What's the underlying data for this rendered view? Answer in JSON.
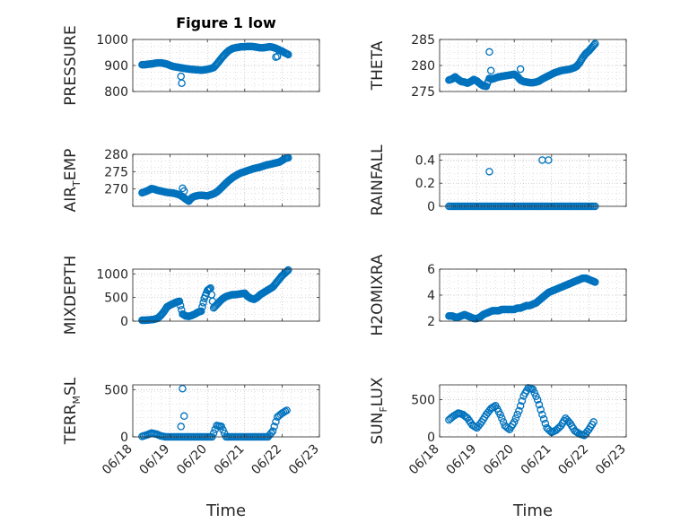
{
  "figure": {
    "title": "Figure 1 low",
    "x_label": "Time",
    "marker_color": "#0072BD",
    "axis_color": "#262626",
    "grid_color": "#B3B3B3"
  },
  "chart_data": [
    {
      "type": "scatter",
      "ylabel": "PRESSURE",
      "title": "Figure 1 low",
      "xlim": [
        "06/18",
        "06/23"
      ],
      "ylim": [
        800,
        1000
      ],
      "yticks": [
        800,
        900,
        1000
      ],
      "xticks": [
        "06/18",
        "06/19",
        "06/20",
        "06/21",
        "06/22",
        "06/23"
      ],
      "grid": true,
      "x": [
        "06/18 06h",
        "06/18 08h",
        "06/18 10h",
        "06/18 12h",
        "06/18 14h",
        "06/18 16h",
        "06/18 18h",
        "06/18 20h",
        "06/18 22h",
        "06/19 00h",
        "06/19 02h",
        "06/19 04h",
        "06/19 06h",
        "06/19 08h",
        "06/19 10h",
        "06/19 12h",
        "06/19 14h",
        "06/19 16h",
        "06/19 18h",
        "06/19 20h",
        "06/19 22h",
        "06/20 00h",
        "06/20 02h",
        "06/20 04h",
        "06/20 06h",
        "06/20 08h",
        "06/20 10h",
        "06/20 12h",
        "06/20 14h",
        "06/20 16h",
        "06/20 18h",
        "06/20 20h",
        "06/20 22h",
        "06/21 00h",
        "06/21 02h",
        "06/21 04h",
        "06/21 06h",
        "06/21 08h",
        "06/21 10h",
        "06/21 12h",
        "06/21 14h",
        "06/21 16h",
        "06/21 18h",
        "06/21 20h",
        "06/21 22h",
        "06/22 00h",
        "06/22 02h",
        "06/22 04h"
      ],
      "y": [
        903,
        903,
        905,
        906,
        908,
        910,
        910,
        908,
        905,
        900,
        896,
        894,
        892,
        890,
        888,
        886,
        885,
        884,
        883,
        882,
        883,
        885,
        888,
        892,
        905,
        920,
        935,
        948,
        958,
        965,
        968,
        970,
        972,
        972,
        973,
        973,
        972,
        970,
        968,
        968,
        970,
        972,
        970,
        966,
        960,
        955,
        948,
        942
      ],
      "outliers": [
        {
          "x": "06/19 07h",
          "y": 858
        },
        {
          "x": "06/19 07h30",
          "y": 832
        },
        {
          "x": "06/21 20h",
          "y": 932
        },
        {
          "x": "06/21 21h",
          "y": 935
        }
      ]
    },
    {
      "type": "scatter",
      "ylabel": "THETA",
      "xlim": [
        "06/18",
        "06/23"
      ],
      "ylim": [
        275,
        285
      ],
      "yticks": [
        275,
        280,
        285
      ],
      "xticks": [
        "06/18",
        "06/19",
        "06/20",
        "06/21",
        "06/22",
        "06/23"
      ],
      "grid": true,
      "x": [
        "06/18 06h",
        "06/18 08h",
        "06/18 10h",
        "06/18 12h",
        "06/18 14h",
        "06/18 16h",
        "06/18 18h",
        "06/18 20h",
        "06/18 22h",
        "06/19 00h",
        "06/19 02h",
        "06/19 04h",
        "06/19 06h",
        "06/19 08h",
        "06/19 10h",
        "06/19 12h",
        "06/19 14h",
        "06/19 16h",
        "06/19 18h",
        "06/19 20h",
        "06/19 22h",
        "06/20 00h",
        "06/20 02h",
        "06/20 04h",
        "06/20 06h",
        "06/20 08h",
        "06/20 10h",
        "06/20 12h",
        "06/20 14h",
        "06/20 16h",
        "06/20 18h",
        "06/20 20h",
        "06/20 22h",
        "06/21 00h",
        "06/21 02h",
        "06/21 04h",
        "06/21 06h",
        "06/21 08h",
        "06/21 10h",
        "06/21 12h",
        "06/21 14h",
        "06/21 16h",
        "06/21 18h",
        "06/21 20h",
        "06/21 22h",
        "06/22 00h",
        "06/22 02h",
        "06/22 04h"
      ],
      "y": [
        277.2,
        277.4,
        277.8,
        277.3,
        276.9,
        276.8,
        276.6,
        276.9,
        277.3,
        277.0,
        276.5,
        276.1,
        276.0,
        277.5,
        277.4,
        277.6,
        277.8,
        277.9,
        278.0,
        278.1,
        278.2,
        278.3,
        277.9,
        277.2,
        276.9,
        276.8,
        276.7,
        276.7,
        276.8,
        277.0,
        277.4,
        277.7,
        278.0,
        278.3,
        278.6,
        278.8,
        279.0,
        279.1,
        279.2,
        279.3,
        279.5,
        279.8,
        280.5,
        281.5,
        282.3,
        282.8,
        283.5,
        284.2
      ],
      "outliers": [
        {
          "x": "06/19 08h",
          "y": 282.6
        },
        {
          "x": "06/19 09h",
          "y": 279.0
        },
        {
          "x": "06/20 04h",
          "y": 279.3
        }
      ]
    },
    {
      "type": "scatter",
      "ylabel": "AIR_TEMP",
      "xlim": [
        "06/18",
        "06/23"
      ],
      "ylim": [
        265,
        280
      ],
      "yticks": [
        270,
        275,
        280
      ],
      "xticks": [
        "06/18",
        "06/19",
        "06/20",
        "06/21",
        "06/22",
        "06/23"
      ],
      "grid": true,
      "x": [
        "06/18 06h",
        "06/18 08h",
        "06/18 10h",
        "06/18 12h",
        "06/18 14h",
        "06/18 16h",
        "06/18 18h",
        "06/18 20h",
        "06/18 22h",
        "06/19 00h",
        "06/19 02h",
        "06/19 04h",
        "06/19 06h",
        "06/19 08h",
        "06/19 10h",
        "06/19 12h",
        "06/19 14h",
        "06/19 16h",
        "06/19 18h",
        "06/19 20h",
        "06/19 22h",
        "06/20 00h",
        "06/20 02h",
        "06/20 04h",
        "06/20 06h",
        "06/20 08h",
        "06/20 10h",
        "06/20 12h",
        "06/20 14h",
        "06/20 16h",
        "06/20 18h",
        "06/20 20h",
        "06/20 22h",
        "06/21 00h",
        "06/21 02h",
        "06/21 04h",
        "06/21 06h",
        "06/21 08h",
        "06/21 10h",
        "06/21 12h",
        "06/21 14h",
        "06/21 16h",
        "06/21 18h",
        "06/21 20h",
        "06/21 22h",
        "06/22 00h",
        "06/22 02h",
        "06/22 04h"
      ],
      "y": [
        268.9,
        269.2,
        269.6,
        270.1,
        269.9,
        269.6,
        269.4,
        269.2,
        269.0,
        268.9,
        268.8,
        268.6,
        268.3,
        267.8,
        267.1,
        266.5,
        267.5,
        267.9,
        268.1,
        268.2,
        268.1,
        268.0,
        268.3,
        268.6,
        269.1,
        269.9,
        270.8,
        271.7,
        272.5,
        273.2,
        273.8,
        274.3,
        274.7,
        275.0,
        275.3,
        275.6,
        275.9,
        276.1,
        276.3,
        276.6,
        276.9,
        277.1,
        277.3,
        277.5,
        277.7,
        278.2,
        278.8,
        279.0
      ],
      "outliers": [
        {
          "x": "06/19 08h",
          "y": 270.2
        },
        {
          "x": "06/19 09h",
          "y": 269.4
        }
      ]
    },
    {
      "type": "scatter",
      "ylabel": "RAINFALL",
      "xlim": [
        "06/18",
        "06/23"
      ],
      "ylim": [
        0,
        0.45
      ],
      "yticks": [
        0,
        0.2,
        0.4
      ],
      "xticks": [
        "06/18",
        "06/19",
        "06/20",
        "06/21",
        "06/22",
        "06/23"
      ],
      "grid": true,
      "x": [
        "06/18 06h",
        "06/22 04h"
      ],
      "y": [
        0,
        0
      ],
      "note_continuous_zero": true,
      "outliers": [
        {
          "x": "06/19 08h",
          "y": 0.3
        },
        {
          "x": "06/20 18h",
          "y": 0.4
        },
        {
          "x": "06/20 22h",
          "y": 0.4
        }
      ]
    },
    {
      "type": "scatter",
      "ylabel": "MIXDEPTH",
      "xlim": [
        "06/18",
        "06/23"
      ],
      "ylim": [
        0,
        1100
      ],
      "yticks": [
        0,
        500,
        1000
      ],
      "xticks": [
        "06/18",
        "06/19",
        "06/20",
        "06/21",
        "06/22",
        "06/23"
      ],
      "grid": true,
      "x": [
        "06/18 06h",
        "06/18 08h",
        "06/18 10h",
        "06/18 12h",
        "06/18 14h",
        "06/18 16h",
        "06/18 18h",
        "06/18 20h",
        "06/18 22h",
        "06/19 00h",
        "06/19 02h",
        "06/19 04h",
        "06/19 06h",
        "06/19 08h",
        "06/19 10h",
        "06/19 12h",
        "06/19 14h",
        "06/19 16h",
        "06/19 18h",
        "06/19 20h",
        "06/19 22h",
        "06/20 00h",
        "06/20 02h",
        "06/20 04h",
        "06/20 06h",
        "06/20 08h",
        "06/20 10h",
        "06/20 12h",
        "06/20 14h",
        "06/20 16h",
        "06/20 18h",
        "06/20 20h",
        "06/20 22h",
        "06/21 00h",
        "06/21 02h",
        "06/21 04h",
        "06/21 06h",
        "06/21 08h",
        "06/21 10h",
        "06/21 12h",
        "06/21 14h",
        "06/21 16h",
        "06/21 18h",
        "06/21 20h",
        "06/21 22h",
        "06/22 00h",
        "06/22 02h",
        "06/22 04h"
      ],
      "y": [
        20,
        20,
        25,
        30,
        40,
        60,
        120,
        200,
        300,
        340,
        370,
        400,
        420,
        150,
        110,
        100,
        120,
        150,
        190,
        210,
        480,
        650,
        700,
        280,
        350,
        420,
        480,
        520,
        540,
        560,
        560,
        570,
        580,
        590,
        520,
        480,
        460,
        500,
        560,
        600,
        640,
        680,
        720,
        800,
        880,
        960,
        1020,
        1080
      ],
      "outliers": []
    },
    {
      "type": "scatter",
      "ylabel": "H2OMIXRA",
      "xlim": [
        "06/18",
        "06/23"
      ],
      "ylim": [
        2,
        6
      ],
      "yticks": [
        2,
        4,
        6
      ],
      "xticks": [
        "06/18",
        "06/19",
        "06/20",
        "06/21",
        "06/22",
        "06/23"
      ],
      "grid": true,
      "x": [
        "06/18 06h",
        "06/18 08h",
        "06/18 10h",
        "06/18 12h",
        "06/18 14h",
        "06/18 16h",
        "06/18 18h",
        "06/18 20h",
        "06/18 22h",
        "06/19 00h",
        "06/19 02h",
        "06/19 04h",
        "06/19 06h",
        "06/19 08h",
        "06/19 10h",
        "06/19 12h",
        "06/19 14h",
        "06/19 16h",
        "06/19 18h",
        "06/19 20h",
        "06/19 22h",
        "06/20 00h",
        "06/20 02h",
        "06/20 04h",
        "06/20 06h",
        "06/20 08h",
        "06/20 10h",
        "06/20 12h",
        "06/20 14h",
        "06/20 16h",
        "06/20 18h",
        "06/20 20h",
        "06/20 22h",
        "06/21 00h",
        "06/21 02h",
        "06/21 04h",
        "06/21 06h",
        "06/21 08h",
        "06/21 10h",
        "06/21 12h",
        "06/21 14h",
        "06/21 16h",
        "06/21 18h",
        "06/21 20h",
        "06/21 22h",
        "06/22 00h",
        "06/22 02h",
        "06/22 04h"
      ],
      "y": [
        2.4,
        2.4,
        2.3,
        2.3,
        2.4,
        2.5,
        2.4,
        2.3,
        2.2,
        2.2,
        2.3,
        2.5,
        2.6,
        2.7,
        2.8,
        2.8,
        2.8,
        2.9,
        2.9,
        2.9,
        2.9,
        2.9,
        3.0,
        3.0,
        3.1,
        3.2,
        3.2,
        3.3,
        3.4,
        3.6,
        3.8,
        4.0,
        4.2,
        4.3,
        4.4,
        4.5,
        4.6,
        4.7,
        4.8,
        4.9,
        5.0,
        5.1,
        5.2,
        5.3,
        5.3,
        5.2,
        5.1,
        5.0
      ],
      "outliers": []
    },
    {
      "type": "scatter",
      "ylabel": "TERR_MSL",
      "xlim": [
        "06/18",
        "06/23"
      ],
      "ylim": [
        0,
        550
      ],
      "yticks": [
        0,
        500
      ],
      "xticks": [
        "06/18",
        "06/19",
        "06/20",
        "06/21",
        "06/22",
        "06/23"
      ],
      "grid": true,
      "x": [
        "06/18 06h",
        "06/18 09h",
        "06/18 12h",
        "06/18 15h",
        "06/18 18h",
        "06/18 21h",
        "06/19 00h",
        "06/19 03h",
        "06/19 06h",
        "06/19 09h",
        "06/19 12h",
        "06/19 15h",
        "06/19 18h",
        "06/19 21h",
        "06/20 00h",
        "06/20 03h",
        "06/20 06h",
        "06/20 09h",
        "06/20 12h",
        "06/20 15h",
        "06/20 18h",
        "06/20 21h",
        "06/21 00h",
        "06/21 03h",
        "06/21 06h",
        "06/21 09h",
        "06/21 12h",
        "06/21 15h",
        "06/21 18h",
        "06/21 21h",
        "06/22 00h",
        "06/22 03h"
      ],
      "y": [
        5,
        20,
        40,
        30,
        10,
        0,
        0,
        0,
        0,
        0,
        0,
        0,
        0,
        0,
        0,
        0,
        120,
        110,
        0,
        0,
        0,
        0,
        0,
        0,
        0,
        0,
        0,
        0,
        60,
        210,
        250,
        280
      ],
      "outliers": [
        {
          "x": "06/19 08h",
          "y": 510
        },
        {
          "x": "06/19 09h",
          "y": 220
        },
        {
          "x": "06/19 07h",
          "y": 110
        }
      ]
    },
    {
      "type": "scatter",
      "ylabel": "SUN_FLUX",
      "xlim": [
        "06/18",
        "06/23"
      ],
      "ylim": [
        0,
        700
      ],
      "yticks": [
        0,
        500
      ],
      "xticks": [
        "06/18",
        "06/19",
        "06/20",
        "06/21",
        "06/22",
        "06/23"
      ],
      "grid": true,
      "x": [
        "06/18 06h",
        "06/18 09h",
        "06/18 12h",
        "06/18 15h",
        "06/18 18h",
        "06/18 21h",
        "06/19 00h",
        "06/19 03h",
        "06/19 06h",
        "06/19 09h",
        "06/19 12h",
        "06/19 15h",
        "06/19 18h",
        "06/19 21h",
        "06/20 00h",
        "06/20 03h",
        "06/20 06h",
        "06/20 09h",
        "06/20 12h",
        "06/20 15h",
        "06/20 18h",
        "06/20 21h",
        "06/21 00h",
        "06/21 03h",
        "06/21 06h",
        "06/21 09h",
        "06/21 12h",
        "06/21 15h",
        "06/21 18h",
        "06/21 21h",
        "06/22 00h",
        "06/22 03h"
      ],
      "y": [
        230,
        280,
        320,
        300,
        250,
        160,
        120,
        200,
        300,
        380,
        420,
        300,
        150,
        100,
        200,
        350,
        550,
        660,
        640,
        500,
        300,
        120,
        60,
        90,
        150,
        250,
        180,
        80,
        40,
        20,
        100,
        200
      ],
      "outliers": []
    }
  ],
  "panels": [
    {
      "ylabel_main": "PRESSURE",
      "ylabel_sub": "",
      "ylabel_tail": ""
    },
    {
      "ylabel_main": "THETA",
      "ylabel_sub": "",
      "ylabel_tail": ""
    },
    {
      "ylabel_main": "AIR",
      "ylabel_sub": "T",
      "ylabel_tail": "EMP"
    },
    {
      "ylabel_main": "RAINFALL",
      "ylabel_sub": "",
      "ylabel_tail": ""
    },
    {
      "ylabel_main": "MIXDEPTH",
      "ylabel_sub": "",
      "ylabel_tail": ""
    },
    {
      "ylabel_main": "H2OMIXRA",
      "ylabel_sub": "",
      "ylabel_tail": ""
    },
    {
      "ylabel_main": "TERR",
      "ylabel_sub": "M",
      "ylabel_tail": "SL"
    },
    {
      "ylabel_main": "SUN",
      "ylabel_sub": "F",
      "ylabel_tail": "LUX"
    }
  ]
}
